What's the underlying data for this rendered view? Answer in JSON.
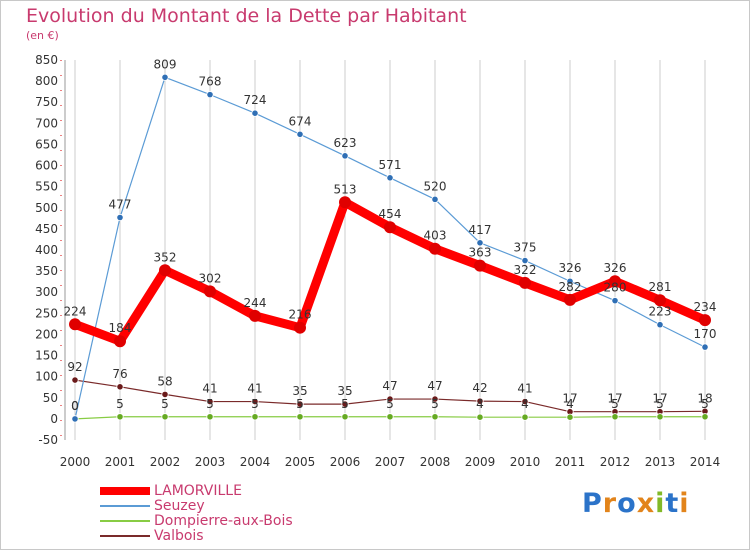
{
  "title": "Evolution du Montant de la Dette par Habitant",
  "subtitle": "(en €)",
  "logo_text": "Proxiti",
  "colors": {
    "title": "#c83a6e",
    "grid": "#cccccc",
    "axis": "#999999",
    "red_marks": "#d80000",
    "logo": [
      "#2b73c9",
      "#e2841b",
      "#2b73c9",
      "#e2841b",
      "#82b927",
      "#2b73c9",
      "#e2841b"
    ]
  },
  "chart_data": {
    "type": "line",
    "x": [
      "2000",
      "2001",
      "2002",
      "2003",
      "2004",
      "2005",
      "2006",
      "2007",
      "2008",
      "2009",
      "2010",
      "2011",
      "2012",
      "2013",
      "2014"
    ],
    "ylim": [
      -50,
      850
    ],
    "yticks": [
      "-50",
      "0",
      "50",
      "100",
      "150",
      "200",
      "250",
      "300",
      "350",
      "400",
      "450",
      "500",
      "550",
      "600",
      "650",
      "700",
      "750",
      "800",
      "850"
    ],
    "grid": false,
    "legend_position": "bottom-left",
    "series": [
      {
        "name": "LAMORVILLE",
        "color": "#ff0000",
        "point_color": "#e00000",
        "width": 9,
        "marker": 6,
        "values": [
          224,
          184,
          352,
          302,
          244,
          216,
          513,
          454,
          403,
          363,
          322,
          282,
          326,
          281,
          234
        ],
        "labels": [
          "224",
          "184",
          "352",
          "302",
          "244",
          "216",
          "513",
          "454",
          "403",
          "363",
          "322",
          "282",
          "326",
          "281",
          "234"
        ]
      },
      {
        "name": "Seuzey",
        "color": "#5b9bd5",
        "point_color": "#2f6fb5",
        "width": 1.2,
        "marker": 3.2,
        "values": [
          0,
          477,
          809,
          768,
          724,
          674,
          623,
          571,
          520,
          417,
          375,
          326,
          280,
          223,
          170
        ],
        "labels": [
          "0",
          "477",
          "809",
          "768",
          "724",
          "674",
          "623",
          "571",
          "520",
          "417",
          "375",
          "326",
          "280",
          "223",
          "170"
        ]
      },
      {
        "name": "Dompierre-aux-Bois",
        "color": "#88cc44",
        "point_color": "#66aa22",
        "width": 1.2,
        "marker": 3.2,
        "values": [
          0,
          5,
          5,
          5,
          5,
          5,
          5,
          5,
          5,
          4,
          4,
          4,
          5,
          5,
          5
        ],
        "labels": [
          "0",
          "5",
          "5",
          "5",
          "5",
          "5",
          "5",
          "5",
          "5",
          "4",
          "4",
          "4",
          "5",
          "5",
          "5"
        ]
      },
      {
        "name": "Valbois",
        "color": "#7a2a2a",
        "point_color": "#6a1a1a",
        "width": 1.2,
        "marker": 3.2,
        "values": [
          92,
          76,
          58,
          41,
          41,
          35,
          35,
          47,
          47,
          42,
          41,
          17,
          17,
          17,
          18
        ],
        "labels": [
          "92",
          "76",
          "58",
          "41",
          "41",
          "35",
          "35",
          "47",
          "47",
          "42",
          "41",
          "17",
          "17",
          "17",
          "18"
        ]
      }
    ]
  }
}
